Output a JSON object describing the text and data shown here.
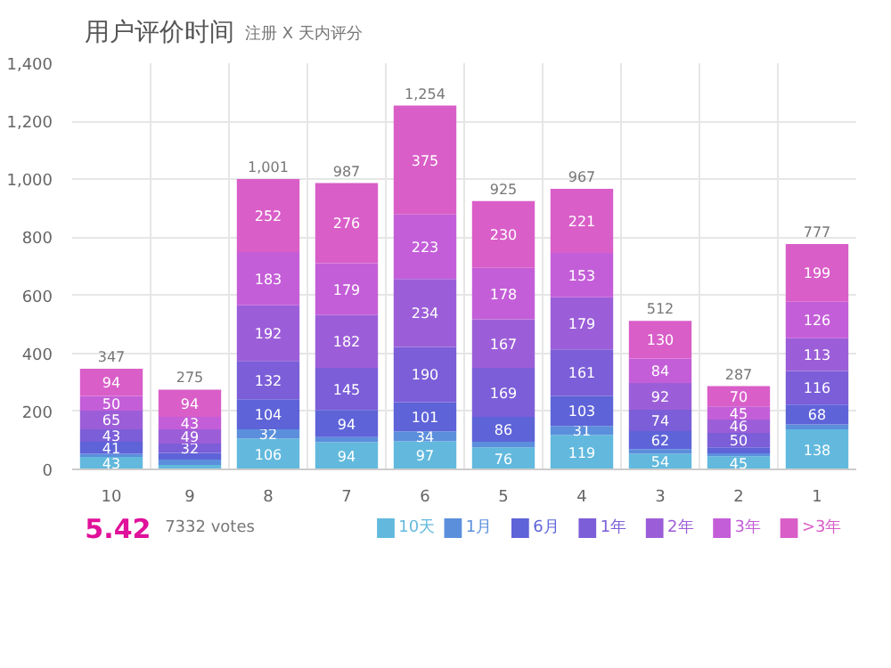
{
  "chart_data": {
    "type": "bar",
    "title": "用户评价时间",
    "subtitle": "注册 X 天内评分",
    "categories": [
      "10",
      "9",
      "8",
      "7",
      "6",
      "5",
      "4",
      "3",
      "2",
      "1"
    ],
    "stacked": true,
    "series": [
      {
        "name": "10天",
        "color": "#62b9dd",
        "values": [
          43,
          15,
          106,
          94,
          97,
          76,
          119,
          54,
          45,
          138
        ],
        "value_labels": [
          "43",
          null,
          "106",
          "94",
          "97",
          "76",
          "119",
          "54",
          "45",
          "138"
        ]
      },
      {
        "name": "1月",
        "color": "#5b8fdc",
        "values": [
          11,
          19,
          32,
          17,
          34,
          19,
          31,
          16,
          10,
          17
        ],
        "value_labels": [
          null,
          null,
          "32",
          null,
          "34",
          null,
          "31",
          null,
          null,
          null
        ]
      },
      {
        "name": "6月",
        "color": "#5e63d8",
        "values": [
          41,
          23,
          104,
          94,
          101,
          86,
          103,
          62,
          21,
          68
        ],
        "value_labels": [
          "41",
          null,
          "104",
          "94",
          "101",
          "86",
          "103",
          "62",
          null,
          "68"
        ]
      },
      {
        "name": "1年",
        "color": "#7b5ed8",
        "values": [
          43,
          32,
          132,
          145,
          190,
          169,
          161,
          74,
          50,
          116
        ],
        "value_labels": [
          "43",
          "32",
          "132",
          "145",
          "190",
          "169",
          "161",
          "74",
          "50",
          "116"
        ]
      },
      {
        "name": "2年",
        "color": "#9c5ed8",
        "values": [
          65,
          49,
          192,
          182,
          234,
          167,
          179,
          92,
          46,
          113
        ],
        "value_labels": [
          "65",
          "49",
          "192",
          "182",
          "234",
          "167",
          "179",
          "92",
          "46",
          "113"
        ]
      },
      {
        "name": "3年",
        "color": "#c45ed8",
        "values": [
          50,
          43,
          183,
          179,
          223,
          178,
          153,
          84,
          45,
          126
        ],
        "value_labels": [
          "50",
          "43",
          "183",
          "179",
          "223",
          "178",
          "153",
          "84",
          "45",
          "126"
        ]
      },
      {
        "name": ">3年",
        "color": "#d95ec8",
        "values": [
          94,
          94,
          252,
          276,
          375,
          230,
          221,
          130,
          70,
          199
        ],
        "value_labels": [
          "94",
          "94",
          "252",
          "276",
          "375",
          "230",
          "221",
          "130",
          "70",
          "199"
        ]
      }
    ],
    "totals": [
      "347",
      "275",
      "1,001",
      "987",
      "1,254",
      "925",
      "967",
      "512",
      "287",
      "777"
    ],
    "ylim": [
      0,
      1400
    ],
    "yticks": [
      {
        "value": 0,
        "label": "0"
      },
      {
        "value": 200,
        "label": "200"
      },
      {
        "value": 400,
        "label": "400"
      },
      {
        "value": 600,
        "label": "600"
      },
      {
        "value": 800,
        "label": "800"
      },
      {
        "value": 1000,
        "label": "1,000"
      },
      {
        "value": 1200,
        "label": "1,200"
      },
      {
        "value": 1400,
        "label": "1,400"
      }
    ],
    "grid": true,
    "legend": "bottom right",
    "annotations": [
      "5.42",
      "7332 votes"
    ]
  }
}
